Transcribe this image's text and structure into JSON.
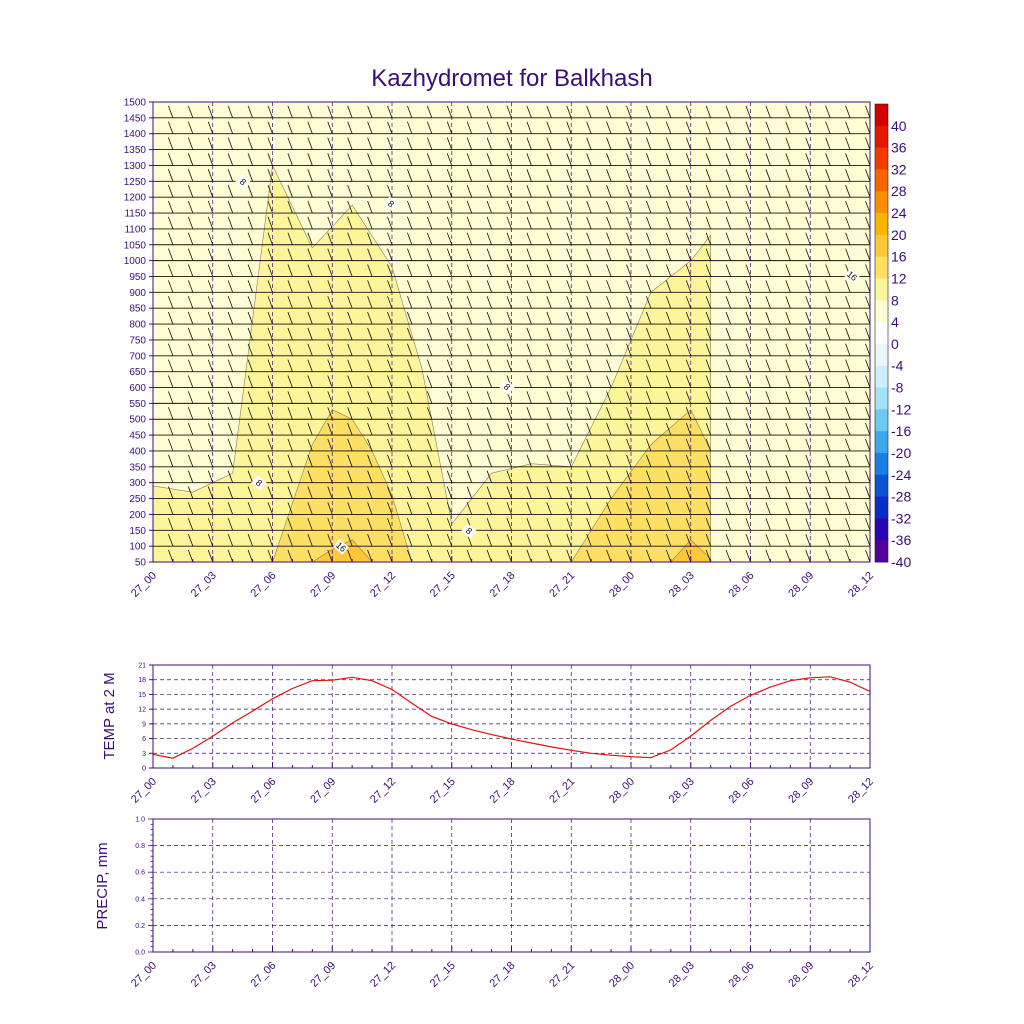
{
  "chart_data": [
    {
      "type": "heatmap",
      "title": "Kazhydromet for Balkhash",
      "time_labels": [
        "27_00",
        "27_03",
        "27_06",
        "27_09",
        "27_12",
        "27_15",
        "27_18",
        "27_21",
        "28_00",
        "28_03",
        "28_06",
        "28_09",
        "28_12"
      ],
      "pressure_levels": [
        50,
        100,
        150,
        200,
        250,
        300,
        350,
        400,
        450,
        500,
        550,
        600,
        650,
        700,
        750,
        800,
        850,
        900,
        950,
        1000,
        1050,
        1100,
        1150,
        1200,
        1250,
        1300,
        1350,
        1400,
        1450,
        1500
      ],
      "ylim": [
        50,
        1500
      ],
      "colorbar": {
        "labels": [
          "40",
          "36",
          "32",
          "28",
          "24",
          "20",
          "16",
          "12",
          "8",
          "4",
          "0",
          "-4",
          "-8",
          "-12",
          "-16",
          "-20",
          "-24",
          "-28",
          "-32",
          "-36",
          "-40"
        ],
        "colors": [
          "#d40000",
          "#e81800",
          "#f33c00",
          "#f86400",
          "#f98f00",
          "#fbb400",
          "#fcc83a",
          "#fce063",
          "#fdf59a",
          "#fefdd3",
          "#ffffff",
          "#e9f7fc",
          "#cdeffa",
          "#a5e1f7",
          "#6ec9f1",
          "#3ca8ea",
          "#1b7ee3",
          "#0a55d6",
          "#0a2bc7",
          "#2a06b0",
          "#54009a"
        ]
      },
      "contour_labels": [
        "8",
        "8",
        "8",
        "8",
        "8",
        "16",
        "16"
      ],
      "series": [
        {
          "name": "temperature_contour_8",
          "values": [
            [
              0,
              290
            ],
            [
              2,
              270
            ],
            [
              4,
              330
            ],
            [
              6,
              1300
            ],
            [
              8,
              1040
            ],
            [
              10,
              1175
            ],
            [
              12,
              980
            ],
            [
              13.5,
              660
            ],
            [
              15,
              170
            ],
            [
              17,
              330
            ],
            [
              19,
              360
            ],
            [
              21,
              350
            ],
            [
              23,
              600
            ],
            [
              25,
              900
            ],
            [
              27,
              1000
            ],
            [
              28,
              1080
            ]
          ]
        },
        {
          "name": "temperature_contour_12",
          "values": [
            [
              6,
              50
            ],
            [
              8,
              420
            ],
            [
              9,
              530
            ],
            [
              10,
              500
            ],
            [
              11,
              400
            ],
            [
              12,
              260
            ],
            [
              13,
              50
            ],
            [
              21,
              50
            ],
            [
              23,
              250
            ],
            [
              25,
              420
            ],
            [
              27,
              530
            ],
            [
              28,
              400
            ]
          ]
        },
        {
          "name": "temperature_contour_16",
          "values": [
            [
              8,
              50
            ],
            [
              9,
              90
            ],
            [
              10,
              120
            ],
            [
              11,
              50
            ],
            [
              26,
              50
            ],
            [
              27,
              120
            ],
            [
              28,
              60
            ]
          ]
        }
      ]
    },
    {
      "type": "line",
      "title": "",
      "xlabel": "",
      "ylabel": "TEMP at 2 M",
      "ylim": [
        0,
        21
      ],
      "yticks": [
        "0",
        "3",
        "6",
        "9",
        "12",
        "15",
        "18",
        "21"
      ],
      "time_labels": [
        "27_00",
        "27_03",
        "27_06",
        "27_09",
        "27_12",
        "27_15",
        "27_18",
        "27_21",
        "28_00",
        "28_03",
        "28_06",
        "28_09",
        "28_12"
      ],
      "series": [
        {
          "name": "TEMP at 2 M",
          "color": "#e01010",
          "x": [
            0,
            1,
            2,
            3,
            4,
            5,
            6,
            7,
            8,
            9,
            10,
            11,
            12,
            13,
            14,
            15,
            16,
            17,
            18,
            19,
            20,
            21,
            22,
            23,
            24,
            25,
            26,
            27,
            28,
            29,
            30,
            31,
            32,
            33,
            34,
            35,
            36
          ],
          "values": [
            2.8,
            2.0,
            4.0,
            6.5,
            9.2,
            11.6,
            14.1,
            16.2,
            17.8,
            17.9,
            18.5,
            17.8,
            16.0,
            13.2,
            10.5,
            9.0,
            7.8,
            6.8,
            5.9,
            5.1,
            4.3,
            3.6,
            3.0,
            2.6,
            2.3,
            2.1,
            3.7,
            6.5,
            9.7,
            12.6,
            14.8,
            16.5,
            17.8,
            18.4,
            18.6,
            17.5,
            15.6
          ]
        }
      ]
    },
    {
      "type": "line",
      "title": "",
      "xlabel": "",
      "ylabel": "PRECIP, mm",
      "ylim": [
        0.0,
        1.0
      ],
      "yticks": [
        "0.0",
        "0.2",
        "0.4",
        "0.6",
        "0.8",
        "1.0"
      ],
      "time_labels": [
        "27_00",
        "27_03",
        "27_06",
        "27_09",
        "27_12",
        "27_15",
        "27_18",
        "27_21",
        "28_00",
        "28_03",
        "28_06",
        "28_09",
        "28_12"
      ],
      "series": [
        {
          "name": "PRECIP",
          "color": "#e01010",
          "x": [],
          "values": []
        }
      ]
    }
  ]
}
